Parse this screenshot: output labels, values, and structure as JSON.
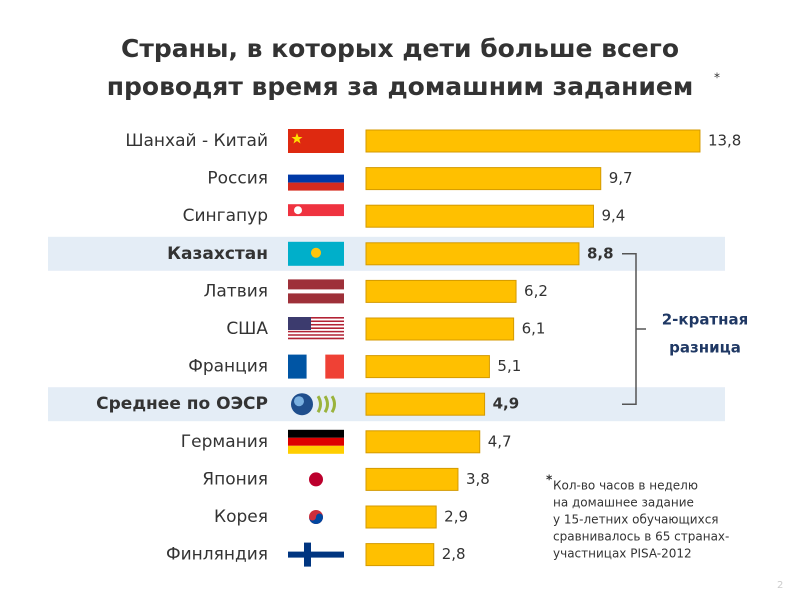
{
  "chart_data": {
    "type": "bar",
    "orientation": "horizontal",
    "title_lines": [
      "Страны, в которых дети больше всего",
      "проводят время за домашним заданием"
    ],
    "title_mark": "*",
    "categories": [
      "Шанхай - Китай",
      "Россия",
      "Сингапур",
      "Казахстан",
      "Латвия",
      "США",
      "Франция",
      "Среднее по ОЭСР",
      "Германия",
      "Япония",
      "Корея",
      "Финляндия"
    ],
    "values": [
      13.8,
      9.7,
      9.4,
      8.8,
      6.2,
      6.1,
      5.1,
      4.9,
      4.7,
      3.8,
      2.9,
      2.8
    ],
    "value_labels": [
      "13,8",
      "9,7",
      "9,4",
      "8,8",
      "6,2",
      "6,1",
      "5,1",
      "4,9",
      "4,7",
      "3,8",
      "2,9",
      "2,8"
    ],
    "color": "#ffc000",
    "highlighted": [
      "Казахстан",
      "Среднее по ОЭСР"
    ],
    "annotation_lines": [
      "2-кратная",
      "разница"
    ],
    "footnote_mark": "*",
    "footnote_lines": [
      "Кол-во часов в неделю",
      "на домашнее задание",
      "у 15-летних обучающихся",
      "сравнивалось в 65 странах-",
      "участницах PISA-2012"
    ],
    "page_number": 2
  }
}
